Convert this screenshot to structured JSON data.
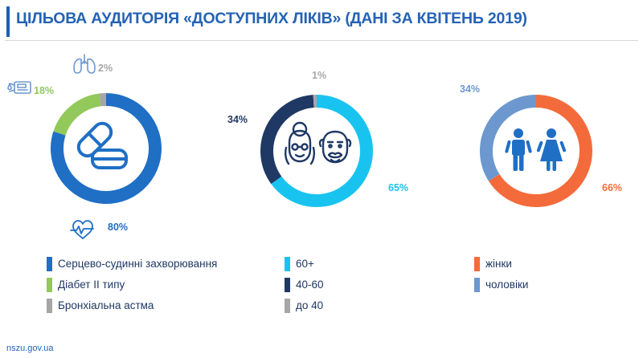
{
  "title": "ЦІЛЬОВА АУДИТОРІЯ «ДОСТУПНИХ ЛІКІВ» (ДАНІ ЗА КВІТЕНЬ 2019)",
  "source": "nszu.gov.ua",
  "colors": {
    "title": "#2463b5",
    "cardio": "#1f6fc5",
    "diabetes": "#92c95a",
    "asthma": "#a6a6a6",
    "age_60_plus": "#19c3f0",
    "age_40_60": "#1f3864",
    "age_under_40": "#a6a6a6",
    "women": "#f46b3b",
    "men": "#6c98cf",
    "icon": "#1f6fc5"
  },
  "icons": [
    "pills-icon",
    "lungs-icon",
    "glucose-meter-icon",
    "heart-pulse-icon",
    "grandma-icon",
    "grandpa-icon",
    "boy-icon",
    "girl-icon"
  ],
  "chart_data": [
    {
      "type": "pie",
      "subtype": "donut",
      "slices": [
        {
          "label": "Серцево-судинні захворювання",
          "value": 80,
          "display": "80%",
          "color": "#1f6fc5"
        },
        {
          "label": "Діабет ІІ типу",
          "value": 18,
          "display": "18%",
          "color": "#92c95a"
        },
        {
          "label": "Бронхіальна астма",
          "value": 2,
          "display": "2%",
          "color": "#a6a6a6"
        }
      ]
    },
    {
      "type": "pie",
      "subtype": "donut",
      "slices": [
        {
          "label": "60+",
          "value": 65,
          "display": "65%",
          "color": "#19c3f0"
        },
        {
          "label": "40-60",
          "value": 34,
          "display": "34%",
          "color": "#1f3864"
        },
        {
          "label": "до 40",
          "value": 1,
          "display": "1%",
          "color": "#a6a6a6"
        }
      ]
    },
    {
      "type": "pie",
      "subtype": "donut",
      "slices": [
        {
          "label": "жінки",
          "value": 66,
          "display": "66%",
          "color": "#f46b3b"
        },
        {
          "label": "чоловіки",
          "value": 34,
          "display": "34%",
          "color": "#6c98cf"
        }
      ]
    }
  ]
}
